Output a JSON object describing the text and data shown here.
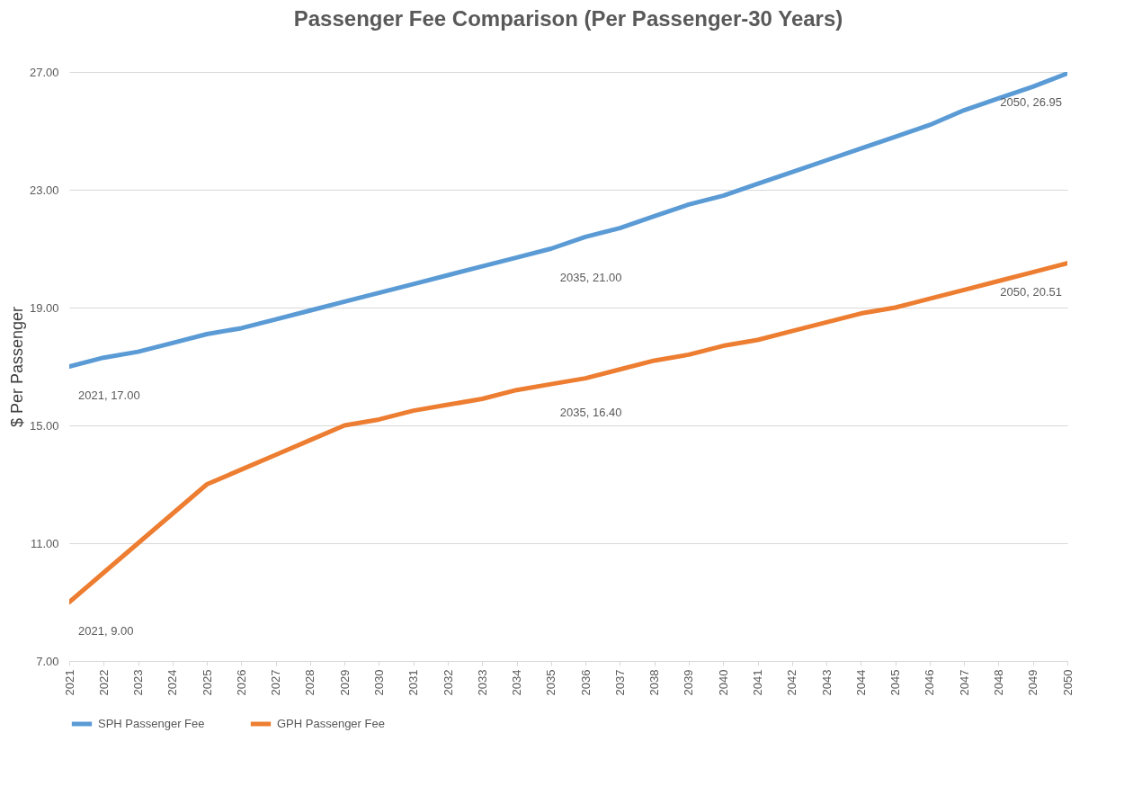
{
  "chart_data": {
    "type": "line",
    "title": "Passenger Fee Comparison (Per Passenger-30 Years)",
    "ylabel": "$ Per Passenger",
    "categories": [
      "2021",
      "2022",
      "2023",
      "2024",
      "2025",
      "2026",
      "2027",
      "2028",
      "2029",
      "2030",
      "2031",
      "2032",
      "2033",
      "2034",
      "2035",
      "2036",
      "2037",
      "2038",
      "2039",
      "2040",
      "2041",
      "2042",
      "2043",
      "2044",
      "2045",
      "2046",
      "2047",
      "2048",
      "2049",
      "2050"
    ],
    "series": [
      {
        "name": "SPH Passenger Fee",
        "color": "#5b9bd5",
        "values": [
          17.0,
          17.3,
          17.5,
          17.8,
          18.1,
          18.3,
          18.6,
          18.9,
          19.2,
          19.5,
          19.8,
          20.1,
          20.4,
          20.7,
          21.0,
          21.4,
          21.7,
          22.1,
          22.5,
          22.8,
          23.2,
          23.6,
          24.0,
          24.4,
          24.8,
          25.2,
          25.7,
          26.1,
          26.5,
          26.95
        ]
      },
      {
        "name": "GPH Passenger Fee",
        "color": "#ed7d31",
        "values": [
          9.0,
          10.0,
          11.0,
          12.0,
          13.0,
          13.5,
          14.0,
          14.5,
          15.0,
          15.2,
          15.5,
          15.7,
          15.9,
          16.2,
          16.4,
          16.6,
          16.9,
          17.2,
          17.4,
          17.7,
          17.9,
          18.2,
          18.5,
          18.8,
          19.0,
          19.3,
          19.6,
          19.9,
          20.2,
          20.51
        ]
      }
    ],
    "ylim": [
      7,
      27
    ],
    "yticks": [
      {
        "value": 7,
        "label": "7.00"
      },
      {
        "value": 11,
        "label": "11.00"
      },
      {
        "value": 15,
        "label": "15.00"
      },
      {
        "value": 19,
        "label": "19.00"
      },
      {
        "value": 23,
        "label": "23.00"
      },
      {
        "value": 27,
        "label": "27.00"
      }
    ],
    "grid": "y",
    "legend": "bottom",
    "marker": "none",
    "line_style": "solid",
    "annotations": [
      {
        "text": "2021, 17.00",
        "x": "2021",
        "y": 17.0
      },
      {
        "text": "2035, 21.00",
        "x": "2035",
        "y": 21.0
      },
      {
        "text": "2050, 26.95",
        "x": "2050",
        "y": 26.95
      },
      {
        "text": "2021, 9.00",
        "x": "2021",
        "y": 9.0
      },
      {
        "text": "2035, 16.40",
        "x": "2035",
        "y": 16.4
      },
      {
        "text": "2050, 20.51",
        "x": "2050",
        "y": 20.51
      }
    ]
  }
}
